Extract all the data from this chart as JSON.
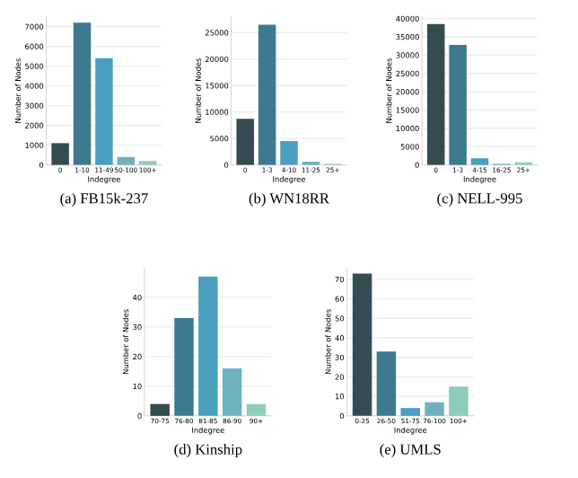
{
  "chart_data": [
    {
      "type": "bar",
      "title": "(a) FB15k-237",
      "xlabel": "Indegree",
      "ylabel": "Number of Nodes",
      "categories": [
        "0",
        "1-10",
        "11-49",
        "50-100",
        "100+"
      ],
      "values": [
        1100,
        7200,
        5400,
        400,
        200
      ],
      "colors": [
        "#344b52",
        "#3d7a8f",
        "#4a9fbf",
        "#6fb2bf",
        "#8ecdbb"
      ],
      "ylim": [
        0,
        7500
      ],
      "yticks": [
        0,
        1000,
        2000,
        3000,
        4000,
        5000,
        6000,
        7000
      ],
      "grid": "y"
    },
    {
      "type": "bar",
      "title": "(b) WN18RR",
      "xlabel": "Indegree",
      "ylabel": "Number of Nodes",
      "categories": [
        "0",
        "1-3",
        "4-10",
        "11-25",
        "25+"
      ],
      "values": [
        8700,
        26500,
        4500,
        600,
        200
      ],
      "colors": [
        "#344b52",
        "#3d7a8f",
        "#4a9fbf",
        "#6fb2bf",
        "#8ecdbb"
      ],
      "ylim": [
        0,
        28000
      ],
      "yticks": [
        0,
        5000,
        10000,
        15000,
        20000,
        25000
      ],
      "grid": "y"
    },
    {
      "type": "bar",
      "title": "(c) NELL-995",
      "xlabel": "Indegree",
      "ylabel": "Number of Nodes",
      "categories": [
        "0",
        "1-3",
        "4-15",
        "16-25",
        "25+"
      ],
      "values": [
        38500,
        32800,
        1800,
        300,
        700
      ],
      "colors": [
        "#344b52",
        "#3d7a8f",
        "#4a9fbf",
        "#6fb2bf",
        "#8ecdbb"
      ],
      "ylim": [
        0,
        40500
      ],
      "yticks": [
        0,
        5000,
        10000,
        15000,
        20000,
        25000,
        30000,
        35000,
        40000
      ],
      "grid": "y"
    },
    {
      "type": "bar",
      "title": "(d) Kinship",
      "xlabel": "Indegree",
      "ylabel": "Number of Nodes",
      "categories": [
        "70-75",
        "76-80",
        "81-85",
        "86-90",
        "90+"
      ],
      "values": [
        4,
        33,
        47,
        16,
        4
      ],
      "colors": [
        "#344b52",
        "#3d7a8f",
        "#4a9fbf",
        "#6fb2bf",
        "#8ecdbb"
      ],
      "ylim": [
        0,
        50
      ],
      "yticks": [
        0,
        10,
        20,
        30,
        40
      ],
      "grid": "y"
    },
    {
      "type": "bar",
      "title": "(e) UMLS",
      "xlabel": "Indegree",
      "ylabel": "Number of Nodes",
      "categories": [
        "0-25",
        "26-50",
        "51-75",
        "76-100",
        "100+"
      ],
      "values": [
        73,
        33,
        4,
        7,
        15
      ],
      "colors": [
        "#344b52",
        "#3d7a8f",
        "#4a9fbf",
        "#6fb2bf",
        "#8ecdbb"
      ],
      "ylim": [
        0,
        76
      ],
      "yticks": [
        0,
        10,
        20,
        30,
        40,
        50,
        60,
        70
      ],
      "grid": "y"
    }
  ]
}
